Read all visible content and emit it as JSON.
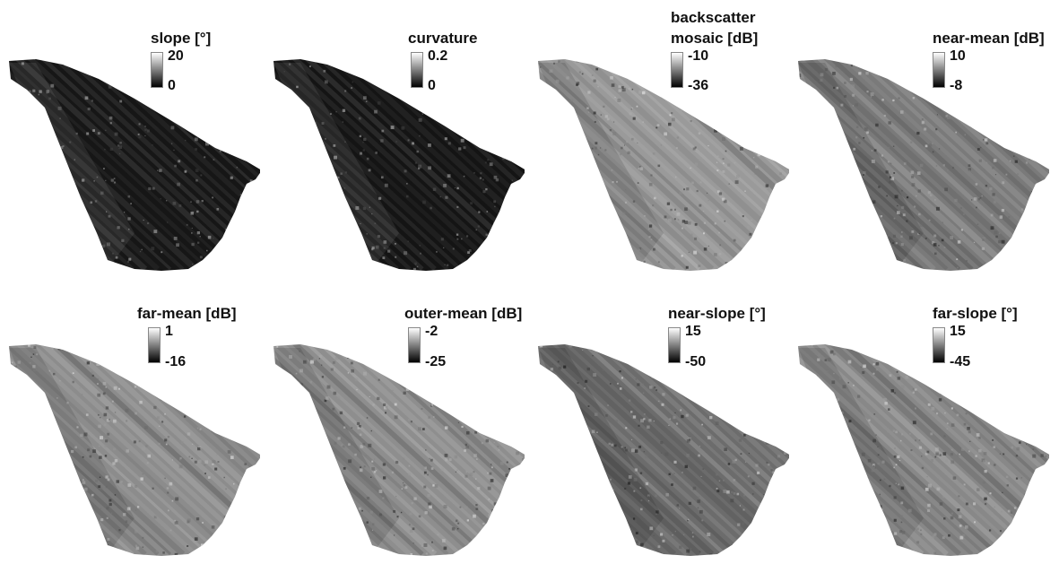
{
  "panels": [
    {
      "title": "slope [°]",
      "max_label": "20",
      "min_label": "0",
      "shade": "#161616",
      "texture": "dark"
    },
    {
      "title": "curvature",
      "max_label": "0.2",
      "min_label": "0",
      "shade": "#141414",
      "texture": "dark"
    },
    {
      "title_line1": "backscatter",
      "title": "mosaic [dB]",
      "max_label": "-10",
      "min_label": "-36",
      "shade": "#9a9a9a",
      "texture": "light"
    },
    {
      "title": "near-mean [dB]",
      "max_label": "10",
      "min_label": "-8",
      "shade": "#7a7a7a",
      "texture": "mid"
    },
    {
      "title": "far-mean [dB]",
      "max_label": "1",
      "min_label": "-16",
      "shade": "#8c8c8c",
      "texture": "mid"
    },
    {
      "title": "outer-mean [dB]",
      "max_label": "-2",
      "min_label": "-25",
      "shade": "#8e8e8e",
      "texture": "mid"
    },
    {
      "title": "near-slope [°]",
      "max_label": "15",
      "min_label": "-50",
      "shade": "#6c6c6c",
      "texture": "mid"
    },
    {
      "title": "far-slope [°]",
      "max_label": "15",
      "min_label": "-45",
      "shade": "#888888",
      "texture": "mid"
    }
  ]
}
